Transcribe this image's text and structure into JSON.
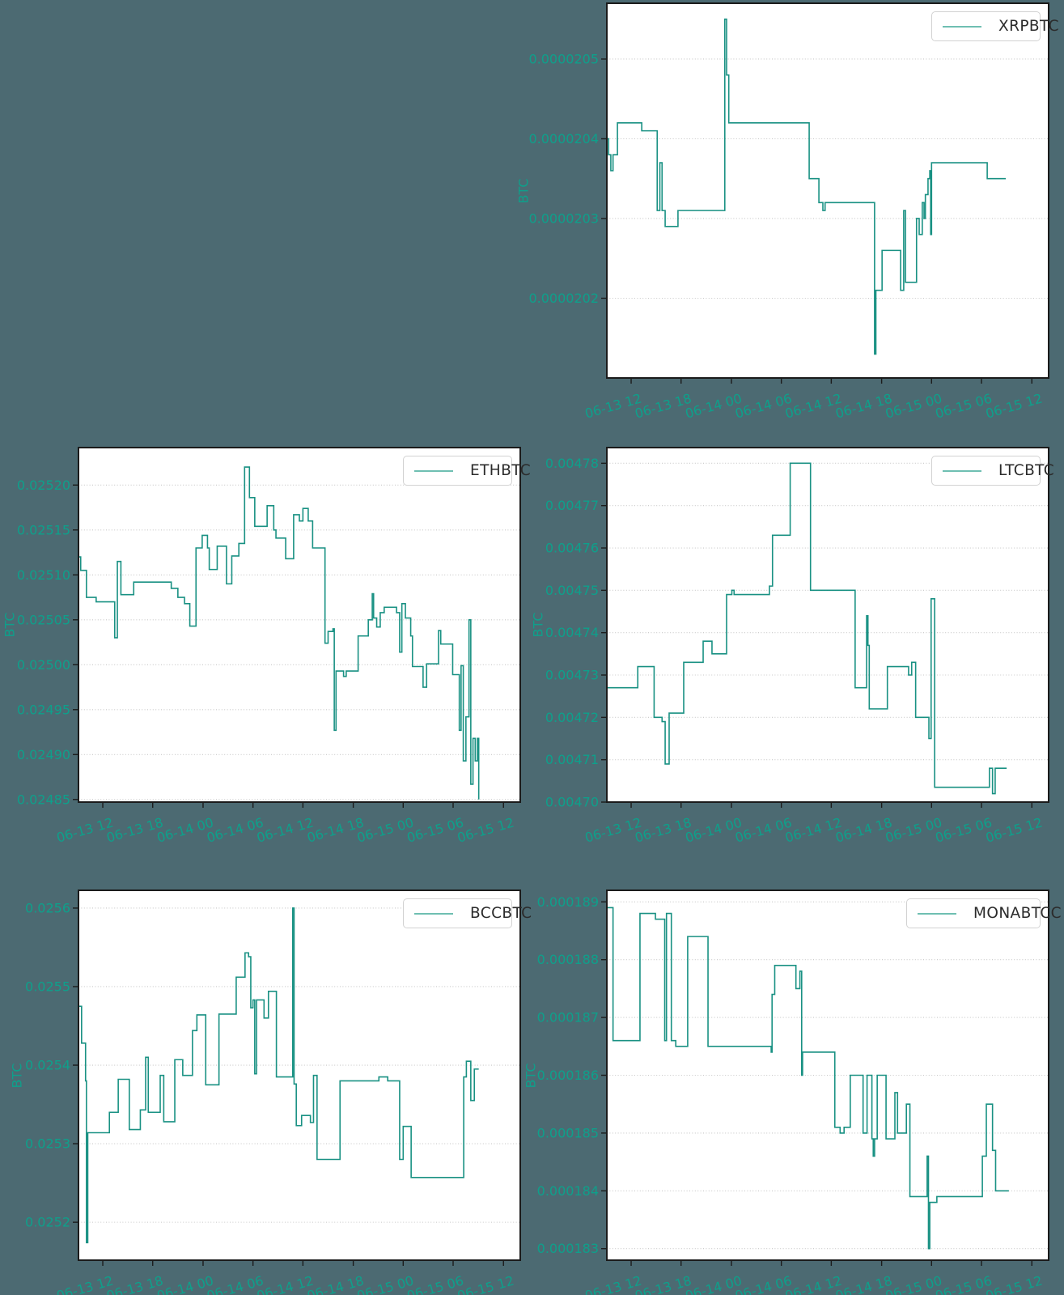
{
  "style": {
    "page_background": "#4c6a72",
    "plot_background": "#ffffff",
    "plot_border_color": "#1b1b1b",
    "grid_color": "#c8c8c8",
    "line_color": "#0d8b7c",
    "legend_line_color": "#6fbfb2",
    "tick_label_color": "#0ea08b",
    "legend_text_color": "#2b2b2b"
  },
  "axes": {
    "ylabel": "BTC",
    "x_tick_labels": [
      "06-13 12",
      "06-13 18",
      "06-14 00",
      "06-14 06",
      "06-14 12",
      "06-14 18",
      "06-15 00",
      "06-15 06",
      "06-15 12"
    ],
    "x_tick_positions": [
      0.055,
      0.168,
      0.282,
      0.395,
      0.508,
      0.622,
      0.735,
      0.848,
      0.962
    ],
    "x_encoding": "fraction-of-x-axis"
  },
  "chart_data": [
    {
      "type": "line",
      "name": "XRPBTC",
      "position": "top-right",
      "ylabel": "BTC",
      "legend_position": "upper-right",
      "grid": true,
      "ylim": [
        2.01e-05,
        2.057e-05
      ],
      "y_tick_values": [
        2.05e-05,
        2.04e-05,
        2.03e-05,
        2.02e-05
      ],
      "y_tick_labels": [
        "0.0000205",
        "0.0000204",
        "0.0000203",
        "0.0000202"
      ],
      "points": [
        [
          0.0,
          2.04e-05
        ],
        [
          0.004,
          2.038e-05
        ],
        [
          0.009,
          2.036e-05
        ],
        [
          0.014,
          2.038e-05
        ],
        [
          0.024,
          2.042e-05
        ],
        [
          0.079,
          2.041e-05
        ],
        [
          0.114,
          2.031e-05
        ],
        [
          0.12,
          2.037e-05
        ],
        [
          0.125,
          2.031e-05
        ],
        [
          0.132,
          2.029e-05
        ],
        [
          0.161,
          2.031e-05
        ],
        [
          0.267,
          2.055e-05
        ],
        [
          0.271,
          2.048e-05
        ],
        [
          0.276,
          2.042e-05
        ],
        [
          0.458,
          2.035e-05
        ],
        [
          0.48,
          2.032e-05
        ],
        [
          0.489,
          2.031e-05
        ],
        [
          0.494,
          2.032e-05
        ],
        [
          0.606,
          2.013e-05
        ],
        [
          0.609,
          2.021e-05
        ],
        [
          0.623,
          2.026e-05
        ],
        [
          0.665,
          2.021e-05
        ],
        [
          0.672,
          2.031e-05
        ],
        [
          0.676,
          2.022e-05
        ],
        [
          0.701,
          2.03e-05
        ],
        [
          0.707,
          2.028e-05
        ],
        [
          0.714,
          2.032e-05
        ],
        [
          0.718,
          2.03e-05
        ],
        [
          0.721,
          2.033e-05
        ],
        [
          0.727,
          2.035e-05
        ],
        [
          0.731,
          2.036e-05
        ],
        [
          0.733,
          2.028e-05
        ],
        [
          0.735,
          2.037e-05
        ],
        [
          0.861,
          2.035e-05
        ],
        [
          0.903,
          2.035e-05
        ]
      ]
    },
    {
      "type": "line",
      "name": "ETHBTC",
      "position": "mid-left",
      "ylabel": "BTC",
      "legend_position": "upper-right",
      "grid": true,
      "ylim": [
        0.0248471,
        0.0252417
      ],
      "y_tick_values": [
        0.0252,
        0.02515,
        0.0251,
        0.02505,
        0.025,
        0.02495,
        0.0249,
        0.02485
      ],
      "y_tick_labels": [
        "0.02520",
        "0.02515",
        "0.02510",
        "0.02505",
        "0.02500",
        "0.02495",
        "0.02490",
        "0.02485"
      ],
      "points": [
        [
          0.0,
          0.02512
        ],
        [
          0.005,
          0.025105
        ],
        [
          0.018,
          0.025075
        ],
        [
          0.04,
          0.02507
        ],
        [
          0.082,
          0.02503
        ],
        [
          0.088,
          0.025115
        ],
        [
          0.096,
          0.025078
        ],
        [
          0.125,
          0.025092
        ],
        [
          0.21,
          0.025085
        ],
        [
          0.225,
          0.025075
        ],
        [
          0.24,
          0.025068
        ],
        [
          0.252,
          0.025043
        ],
        [
          0.266,
          0.02513
        ],
        [
          0.28,
          0.025144
        ],
        [
          0.292,
          0.02513
        ],
        [
          0.296,
          0.025106
        ],
        [
          0.314,
          0.025132
        ],
        [
          0.335,
          0.02509
        ],
        [
          0.347,
          0.025121
        ],
        [
          0.363,
          0.025135
        ],
        [
          0.376,
          0.02522
        ],
        [
          0.387,
          0.025186
        ],
        [
          0.399,
          0.025154
        ],
        [
          0.427,
          0.025177
        ],
        [
          0.442,
          0.02515
        ],
        [
          0.447,
          0.025141
        ],
        [
          0.469,
          0.025118
        ],
        [
          0.487,
          0.025167
        ],
        [
          0.5,
          0.02516
        ],
        [
          0.508,
          0.025174
        ],
        [
          0.52,
          0.02516
        ],
        [
          0.53,
          0.02513
        ],
        [
          0.558,
          0.025024
        ],
        [
          0.565,
          0.025037
        ],
        [
          0.576,
          0.02504
        ],
        [
          0.579,
          0.024927
        ],
        [
          0.583,
          0.024993
        ],
        [
          0.6,
          0.024987
        ],
        [
          0.606,
          0.024993
        ],
        [
          0.633,
          0.025032
        ],
        [
          0.656,
          0.02505
        ],
        [
          0.665,
          0.025079
        ],
        [
          0.668,
          0.025052
        ],
        [
          0.675,
          0.025042
        ],
        [
          0.683,
          0.025058
        ],
        [
          0.692,
          0.025064
        ],
        [
          0.72,
          0.025058
        ],
        [
          0.727,
          0.025014
        ],
        [
          0.732,
          0.025068
        ],
        [
          0.74,
          0.025052
        ],
        [
          0.752,
          0.025032
        ],
        [
          0.756,
          0.024998
        ],
        [
          0.78,
          0.024975
        ],
        [
          0.788,
          0.025001
        ],
        [
          0.815,
          0.025038
        ],
        [
          0.82,
          0.025023
        ],
        [
          0.847,
          0.024989
        ],
        [
          0.862,
          0.024927
        ],
        [
          0.866,
          0.024999
        ],
        [
          0.871,
          0.024893
        ],
        [
          0.877,
          0.024942
        ],
        [
          0.884,
          0.02505
        ],
        [
          0.888,
          0.024867
        ],
        [
          0.893,
          0.024918
        ],
        [
          0.898,
          0.024893
        ],
        [
          0.903,
          0.024918
        ],
        [
          0.906,
          0.02485
        ]
      ]
    },
    {
      "type": "line",
      "name": "LTCBTC",
      "position": "mid-right",
      "ylabel": "BTC",
      "legend_position": "upper-right",
      "grid": true,
      "ylim": [
        0.0047,
        0.0047837
      ],
      "y_tick_values": [
        0.00478,
        0.00477,
        0.00476,
        0.00475,
        0.00474,
        0.00473,
        0.00472,
        0.00471,
        0.0047
      ],
      "y_tick_labels": [
        "0.00478",
        "0.00477",
        "0.00476",
        "0.00475",
        "0.00474",
        "0.00473",
        "0.00472",
        "0.00471",
        "0.00470"
      ],
      "points": [
        [
          0.0,
          0.004727
        ],
        [
          0.07,
          0.004732
        ],
        [
          0.107,
          0.00472
        ],
        [
          0.125,
          0.004719
        ],
        [
          0.132,
          0.004709
        ],
        [
          0.141,
          0.004721
        ],
        [
          0.174,
          0.004733
        ],
        [
          0.218,
          0.004738
        ],
        [
          0.238,
          0.004735
        ],
        [
          0.271,
          0.004749
        ],
        [
          0.283,
          0.00475
        ],
        [
          0.288,
          0.004749
        ],
        [
          0.368,
          0.004751
        ],
        [
          0.375,
          0.004763
        ],
        [
          0.415,
          0.00478
        ],
        [
          0.461,
          0.00475
        ],
        [
          0.562,
          0.004727
        ],
        [
          0.588,
          0.004744
        ],
        [
          0.591,
          0.004737
        ],
        [
          0.594,
          0.004722
        ],
        [
          0.635,
          0.004732
        ],
        [
          0.683,
          0.00473
        ],
        [
          0.69,
          0.004733
        ],
        [
          0.699,
          0.00472
        ],
        [
          0.729,
          0.004715
        ],
        [
          0.734,
          0.004748
        ],
        [
          0.742,
          0.0047035
        ],
        [
          0.866,
          0.004708
        ],
        [
          0.873,
          0.004702
        ],
        [
          0.879,
          0.004708
        ],
        [
          0.905,
          0.004708
        ]
      ]
    },
    {
      "type": "line",
      "name": "BCCBTC",
      "position": "bottom-left",
      "ylabel": "BTC",
      "legend_position": "upper-right",
      "grid": true,
      "ylim": [
        0.0251517,
        0.0256226
      ],
      "y_tick_values": [
        0.0256,
        0.0255,
        0.0254,
        0.0253,
        0.0252
      ],
      "y_tick_labels": [
        "0.0256",
        "0.0255",
        "0.0254",
        "0.0253",
        "0.0252"
      ],
      "points": [
        [
          0.0,
          0.025475
        ],
        [
          0.007,
          0.025428
        ],
        [
          0.016,
          0.02538
        ],
        [
          0.018,
          0.025174
        ],
        [
          0.021,
          0.025314
        ],
        [
          0.07,
          0.02534
        ],
        [
          0.09,
          0.025382
        ],
        [
          0.115,
          0.025318
        ],
        [
          0.14,
          0.025343
        ],
        [
          0.152,
          0.02541
        ],
        [
          0.158,
          0.02534
        ],
        [
          0.185,
          0.025387
        ],
        [
          0.193,
          0.025328
        ],
        [
          0.218,
          0.025407
        ],
        [
          0.236,
          0.025387
        ],
        [
          0.258,
          0.025444
        ],
        [
          0.268,
          0.025464
        ],
        [
          0.288,
          0.025375
        ],
        [
          0.318,
          0.025465
        ],
        [
          0.357,
          0.025512
        ],
        [
          0.377,
          0.025543
        ],
        [
          0.385,
          0.025538
        ],
        [
          0.39,
          0.025473
        ],
        [
          0.395,
          0.025483
        ],
        [
          0.399,
          0.025389
        ],
        [
          0.403,
          0.025483
        ],
        [
          0.42,
          0.02546
        ],
        [
          0.43,
          0.025494
        ],
        [
          0.448,
          0.025385
        ],
        [
          0.485,
          0.0256
        ],
        [
          0.488,
          0.025376
        ],
        [
          0.493,
          0.025323
        ],
        [
          0.505,
          0.025336
        ],
        [
          0.525,
          0.025327
        ],
        [
          0.532,
          0.025387
        ],
        [
          0.54,
          0.02528
        ],
        [
          0.592,
          0.02538
        ],
        [
          0.68,
          0.025385
        ],
        [
          0.7,
          0.02538
        ],
        [
          0.727,
          0.02528
        ],
        [
          0.735,
          0.025322
        ],
        [
          0.753,
          0.025257
        ],
        [
          0.872,
          0.025385
        ],
        [
          0.878,
          0.025405
        ],
        [
          0.888,
          0.025355
        ],
        [
          0.896,
          0.025395
        ],
        [
          0.906,
          0.025395
        ]
      ]
    },
    {
      "type": "line",
      "name": "MONABTCC",
      "position": "bottom-right",
      "ylabel": "BTC",
      "legend_position": "upper-right",
      "grid": true,
      "ylim": [
        0.0001828,
        0.0001892
      ],
      "y_tick_values": [
        0.000189,
        0.000188,
        0.000187,
        0.000186,
        0.000185,
        0.000184,
        0.000183
      ],
      "y_tick_labels": [
        "0.000189",
        "0.000188",
        "0.000187",
        "0.000186",
        "0.000185",
        "0.000184",
        "0.000183"
      ],
      "points": [
        [
          0.0,
          0.0001889
        ],
        [
          0.014,
          0.0001866
        ],
        [
          0.075,
          0.0001888
        ],
        [
          0.11,
          0.0001887
        ],
        [
          0.131,
          0.0001866
        ],
        [
          0.135,
          0.0001888
        ],
        [
          0.146,
          0.0001866
        ],
        [
          0.156,
          0.0001865
        ],
        [
          0.183,
          0.0001884
        ],
        [
          0.229,
          0.0001865
        ],
        [
          0.372,
          0.0001864
        ],
        [
          0.374,
          0.0001874
        ],
        [
          0.38,
          0.0001879
        ],
        [
          0.428,
          0.0001875
        ],
        [
          0.437,
          0.0001878
        ],
        [
          0.441,
          0.000186
        ],
        [
          0.443,
          0.0001864
        ],
        [
          0.516,
          0.0001851
        ],
        [
          0.528,
          0.000185
        ],
        [
          0.537,
          0.0001851
        ],
        [
          0.551,
          0.000186
        ],
        [
          0.58,
          0.000185
        ],
        [
          0.589,
          0.000186
        ],
        [
          0.6,
          0.0001849
        ],
        [
          0.603,
          0.0001846
        ],
        [
          0.606,
          0.0001849
        ],
        [
          0.612,
          0.000186
        ],
        [
          0.632,
          0.0001849
        ],
        [
          0.652,
          0.0001857
        ],
        [
          0.658,
          0.000185
        ],
        [
          0.678,
          0.0001855
        ],
        [
          0.686,
          0.0001839
        ],
        [
          0.725,
          0.0001846
        ],
        [
          0.728,
          0.000183
        ],
        [
          0.731,
          0.0001838
        ],
        [
          0.747,
          0.0001839
        ],
        [
          0.85,
          0.0001846
        ],
        [
          0.859,
          0.0001855
        ],
        [
          0.873,
          0.0001847
        ],
        [
          0.88,
          0.000184
        ],
        [
          0.91,
          0.000184
        ]
      ]
    }
  ]
}
